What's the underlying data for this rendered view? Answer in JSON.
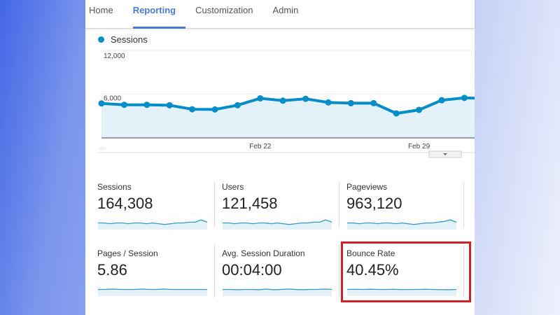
{
  "nav": {
    "tabs": [
      {
        "label": "Home"
      },
      {
        "label": "Reporting",
        "active": true
      },
      {
        "label": "Customization"
      },
      {
        "label": "Admin"
      }
    ]
  },
  "chart_data": {
    "type": "area",
    "series": [
      {
        "name": "Sessions",
        "color": "#058dc7",
        "values": [
          4730,
          4540,
          4540,
          4480,
          3930,
          3900,
          4480,
          5430,
          5110,
          5360,
          4860,
          4760,
          4760,
          3360,
          3840,
          5170,
          5490,
          5400
        ]
      }
    ],
    "x": [
      "Feb 15",
      "Feb 16",
      "Feb 17",
      "Feb 18",
      "Feb 19",
      "Feb 20",
      "Feb 21",
      "Feb 22",
      "Feb 23",
      "Feb 24",
      "Feb 25",
      "Feb 26",
      "Feb 27",
      "Feb 28",
      "Feb 29",
      "Mar 1",
      "Mar 2",
      "Mar 3"
    ],
    "x_tick_labels": [
      "Feb 22",
      "Feb 29"
    ],
    "y_tick_labels": [
      "6,000",
      "12,000"
    ],
    "ylim": [
      0,
      12000
    ],
    "grid": true,
    "legend": "top-left",
    "x_start_label": "..."
  },
  "metrics": [
    {
      "label": "Sessions",
      "value": "164,308",
      "spark": [
        5,
        5,
        4,
        5,
        5,
        4,
        5,
        5,
        4,
        5,
        4,
        3,
        4,
        5,
        5,
        6,
        6,
        9,
        6
      ]
    },
    {
      "label": "Users",
      "value": "121,458",
      "spark": [
        5,
        5,
        4,
        5,
        5,
        4,
        5,
        5,
        4,
        5,
        4,
        3,
        4,
        5,
        5,
        6,
        6,
        9,
        6
      ]
    },
    {
      "label": "Pageviews",
      "value": "963,120",
      "spark": [
        5,
        5,
        4,
        5,
        5,
        4,
        5,
        5,
        4,
        5,
        4,
        3,
        4,
        5,
        5,
        6,
        7,
        9,
        6
      ]
    },
    {
      "label": "Pages / Session",
      "value": "5.86",
      "spark": [
        5,
        5,
        5.5,
        5,
        5,
        5,
        5.5,
        5,
        5,
        5.5,
        5,
        5,
        5,
        5,
        5,
        5
      ]
    },
    {
      "label": "Avg. Session Duration",
      "value": "00:04:00",
      "spark": [
        5,
        5,
        4.6,
        5,
        5,
        4.6,
        5.5,
        4.6,
        5,
        5.5,
        5,
        4.6,
        5,
        5,
        5.5,
        5
      ]
    },
    {
      "label": "Bounce Rate",
      "value": "40.45%",
      "spark": [
        5,
        5.2,
        5,
        5.3,
        5,
        5,
        5.2,
        4.8,
        5,
        5,
        5.2,
        5,
        4.8,
        4.6,
        5
      ]
    }
  ],
  "highlight_color": "#d0202a"
}
